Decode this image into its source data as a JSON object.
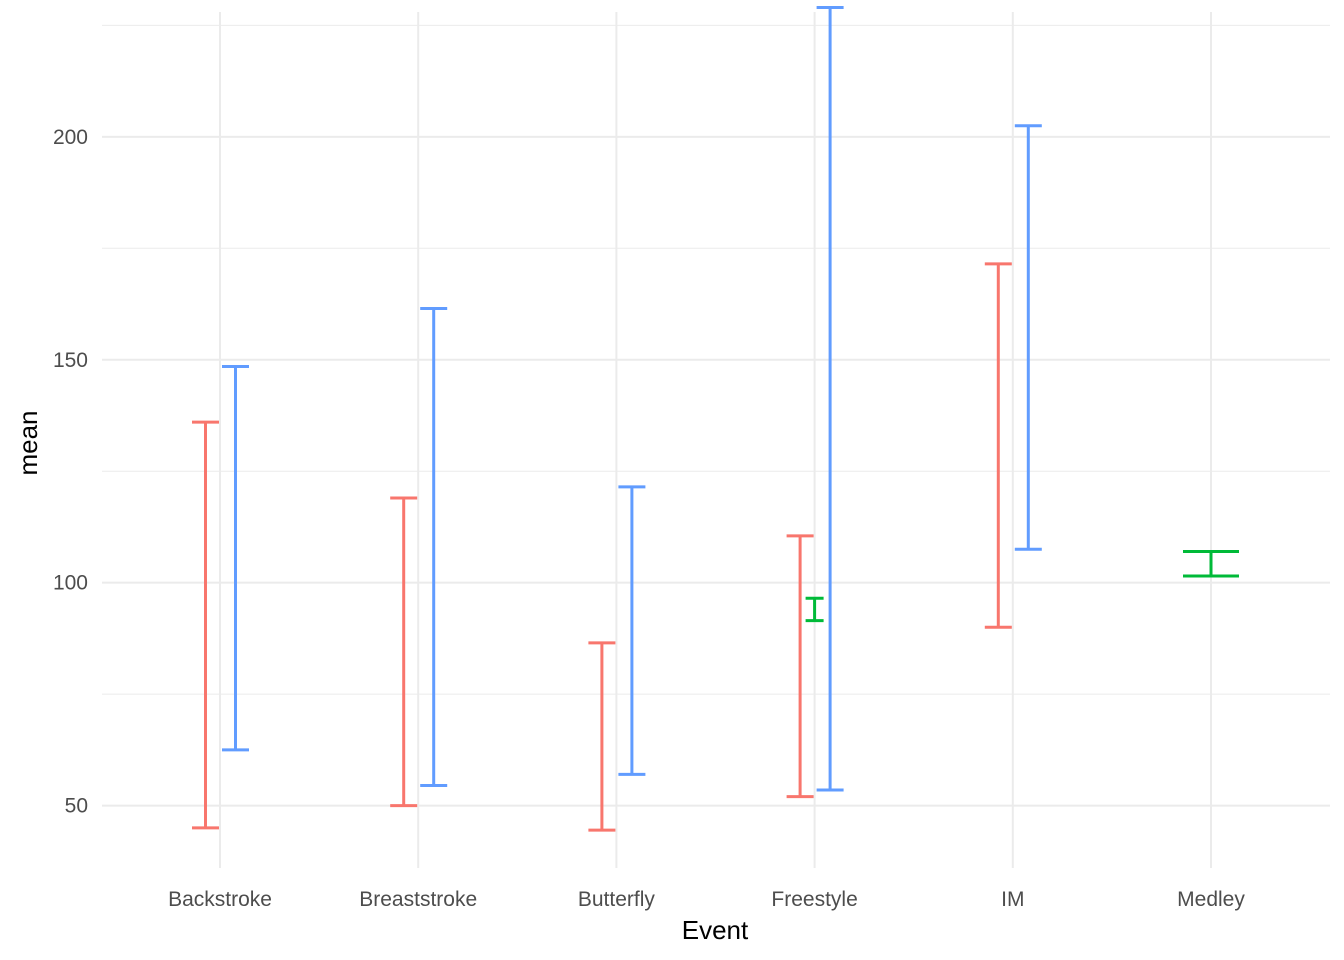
{
  "chart_data": {
    "type": "errorbar",
    "title": "",
    "xlabel": "Event",
    "ylabel": "mean",
    "categories": [
      "Backstroke",
      "Breaststroke",
      "Butterfly",
      "Freestyle",
      "IM",
      "Medley"
    ],
    "ylim": [
      36,
      228
    ],
    "y_ticks": [
      50,
      100,
      150,
      200
    ],
    "y_minor_ticks": [
      75,
      125,
      175,
      225
    ],
    "grid": true,
    "legend": "none",
    "group_colors": [
      "#F8766D",
      "#00BA38",
      "#619CFF"
    ],
    "bars": [
      {
        "category": "Backstroke",
        "group": 0,
        "ymin": 45,
        "ymax": 136
      },
      {
        "category": "Backstroke",
        "group": 2,
        "ymin": 62.5,
        "ymax": 148.5
      },
      {
        "category": "Breaststroke",
        "group": 0,
        "ymin": 50,
        "ymax": 119
      },
      {
        "category": "Breaststroke",
        "group": 2,
        "ymin": 54.5,
        "ymax": 161.5
      },
      {
        "category": "Butterfly",
        "group": 0,
        "ymin": 44.5,
        "ymax": 86.5
      },
      {
        "category": "Butterfly",
        "group": 2,
        "ymin": 57,
        "ymax": 121.5
      },
      {
        "category": "Freestyle",
        "group": 0,
        "ymin": 52,
        "ymax": 110.5
      },
      {
        "category": "Freestyle",
        "group": 1,
        "ymin": 91.5,
        "ymax": 96.5
      },
      {
        "category": "Freestyle",
        "group": 2,
        "ymin": 53.5,
        "ymax": 229
      },
      {
        "category": "IM",
        "group": 0,
        "ymin": 90,
        "ymax": 171.5
      },
      {
        "category": "IM",
        "group": 2,
        "ymin": 107.5,
        "ymax": 202.5
      },
      {
        "category": "Medley",
        "group": 1,
        "ymin": 101.5,
        "ymax": 107
      }
    ]
  }
}
